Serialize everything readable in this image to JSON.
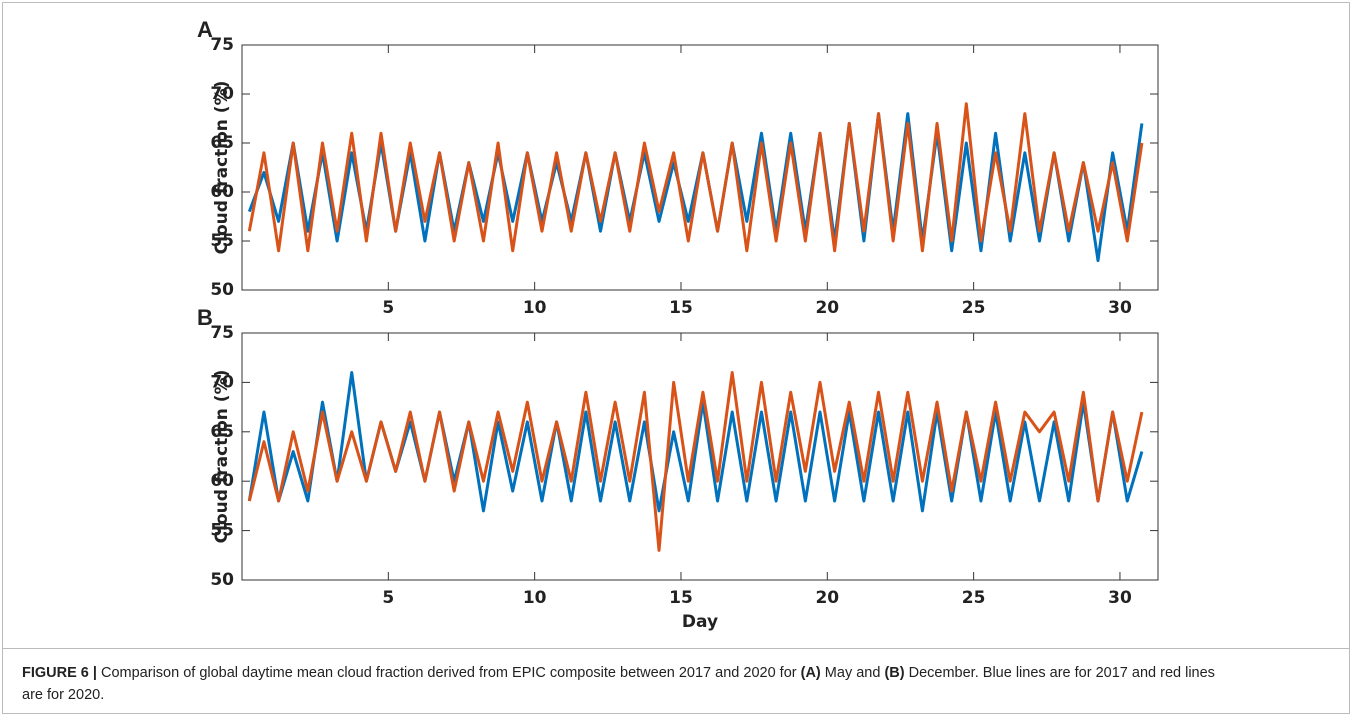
{
  "chart_data": [
    {
      "type": "line",
      "panel": "A",
      "ylabel": "Cloud fraction (%)",
      "x": [
        0.25,
        0.75,
        1.25,
        1.75,
        2.25,
        2.75,
        3.25,
        3.75,
        4.25,
        4.75,
        5.25,
        5.75,
        6.25,
        6.75,
        7.25,
        7.75,
        8.25,
        8.75,
        9.25,
        9.75,
        10.25,
        10.75,
        11.25,
        11.75,
        12.25,
        12.75,
        13.25,
        13.75,
        14.25,
        14.75,
        15.25,
        15.75,
        16.25,
        16.75,
        17.25,
        17.75,
        18.25,
        18.75,
        19.25,
        19.75,
        20.25,
        20.75,
        21.25,
        21.75,
        22.25,
        22.75,
        23.25,
        23.75,
        24.25,
        24.75,
        25.25,
        25.75,
        26.25,
        26.75,
        27.25,
        27.75,
        28.25,
        28.75,
        29.25,
        29.75,
        30.25,
        30.75
      ],
      "xlim": [
        0,
        31.3
      ],
      "xticks": [
        5,
        10,
        15,
        20,
        25,
        30
      ],
      "ylim": [
        50,
        75
      ],
      "yticks": [
        50,
        55,
        60,
        65,
        70,
        75
      ],
      "series": [
        {
          "name": "2017",
          "color": "#0072BD",
          "values": [
            58,
            62,
            57,
            65,
            56,
            64,
            55,
            64,
            56,
            65,
            56,
            64,
            55,
            64,
            56,
            63,
            57,
            64,
            57,
            64,
            57,
            63,
            57,
            64,
            56,
            64,
            57,
            64,
            57,
            63,
            57,
            64,
            56,
            65,
            57,
            66,
            56,
            66,
            56,
            66,
            55,
            67,
            55,
            68,
            56,
            68,
            55,
            66,
            54,
            65,
            54,
            66,
            55,
            64,
            55,
            64,
            55,
            63,
            53,
            64,
            56,
            67
          ]
        },
        {
          "name": "2020",
          "color": "#D95319",
          "values": [
            56,
            64,
            54,
            65,
            54,
            65,
            56,
            66,
            55,
            66,
            56,
            65,
            57,
            64,
            55,
            63,
            55,
            65,
            54,
            64,
            56,
            64,
            56,
            64,
            57,
            64,
            56,
            65,
            58,
            64,
            55,
            64,
            56,
            65,
            54,
            65,
            55,
            65,
            55,
            66,
            54,
            67,
            56,
            68,
            55,
            67,
            54,
            67,
            55,
            69,
            55,
            64,
            56,
            68,
            56,
            64,
            56,
            63,
            56,
            63,
            55,
            65
          ]
        }
      ]
    },
    {
      "type": "line",
      "panel": "B",
      "ylabel": "Cloud fraction (%)",
      "xlabel": "Day",
      "x": [
        0.25,
        0.75,
        1.25,
        1.75,
        2.25,
        2.75,
        3.25,
        3.75,
        4.25,
        4.75,
        5.25,
        5.75,
        6.25,
        6.75,
        7.25,
        7.75,
        8.25,
        8.75,
        9.25,
        9.75,
        10.25,
        10.75,
        11.25,
        11.75,
        12.25,
        12.75,
        13.25,
        13.75,
        14.25,
        14.75,
        15.25,
        15.75,
        16.25,
        16.75,
        17.25,
        17.75,
        18.25,
        18.75,
        19.25,
        19.75,
        20.25,
        20.75,
        21.25,
        21.75,
        22.25,
        22.75,
        23.25,
        23.75,
        24.25,
        24.75,
        25.25,
        25.75,
        26.25,
        26.75,
        27.25,
        27.75,
        28.25,
        28.75,
        29.25,
        29.75,
        30.25,
        30.75
      ],
      "xlim": [
        0,
        31.3
      ],
      "xticks": [
        5,
        10,
        15,
        20,
        25,
        30
      ],
      "ylim": [
        50,
        75
      ],
      "yticks": [
        50,
        55,
        60,
        65,
        70,
        75
      ],
      "series": [
        {
          "name": "2017",
          "color": "#0072BD",
          "values": [
            58,
            67,
            58,
            63,
            58,
            68,
            60,
            71,
            60,
            66,
            61,
            66,
            60,
            67,
            60,
            66,
            57,
            66,
            59,
            66,
            58,
            66,
            58,
            67,
            58,
            66,
            58,
            66,
            57,
            65,
            58,
            68,
            58,
            67,
            58,
            67,
            58,
            67,
            58,
            67,
            58,
            67,
            58,
            67,
            58,
            67,
            57,
            67,
            58,
            67,
            58,
            67,
            58,
            66,
            58,
            66,
            58,
            68,
            58,
            67,
            58,
            63
          ]
        },
        {
          "name": "2020",
          "color": "#D95319",
          "values": [
            58,
            64,
            58,
            65,
            59,
            67,
            60,
            65,
            60,
            66,
            61,
            67,
            60,
            67,
            59,
            66,
            60,
            67,
            61,
            68,
            60,
            66,
            60,
            69,
            60,
            68,
            60,
            69,
            53,
            70,
            60,
            69,
            60,
            71,
            60,
            70,
            60,
            69,
            61,
            70,
            61,
            68,
            60,
            69,
            60,
            69,
            60,
            68,
            59,
            67,
            60,
            68,
            60,
            67,
            65,
            67,
            60,
            69,
            58,
            67,
            60,
            67
          ]
        }
      ]
    }
  ],
  "caption": {
    "label": "FIGURE 6 |",
    "text1": "Comparison of global daytime mean cloud fraction derived from EPIC composite between 2017 and 2020 for",
    "a": "(A)",
    "text2": "May and",
    "b": "(B)",
    "text3": "December. Blue lines are for 2017 and red lines are for 2020."
  }
}
